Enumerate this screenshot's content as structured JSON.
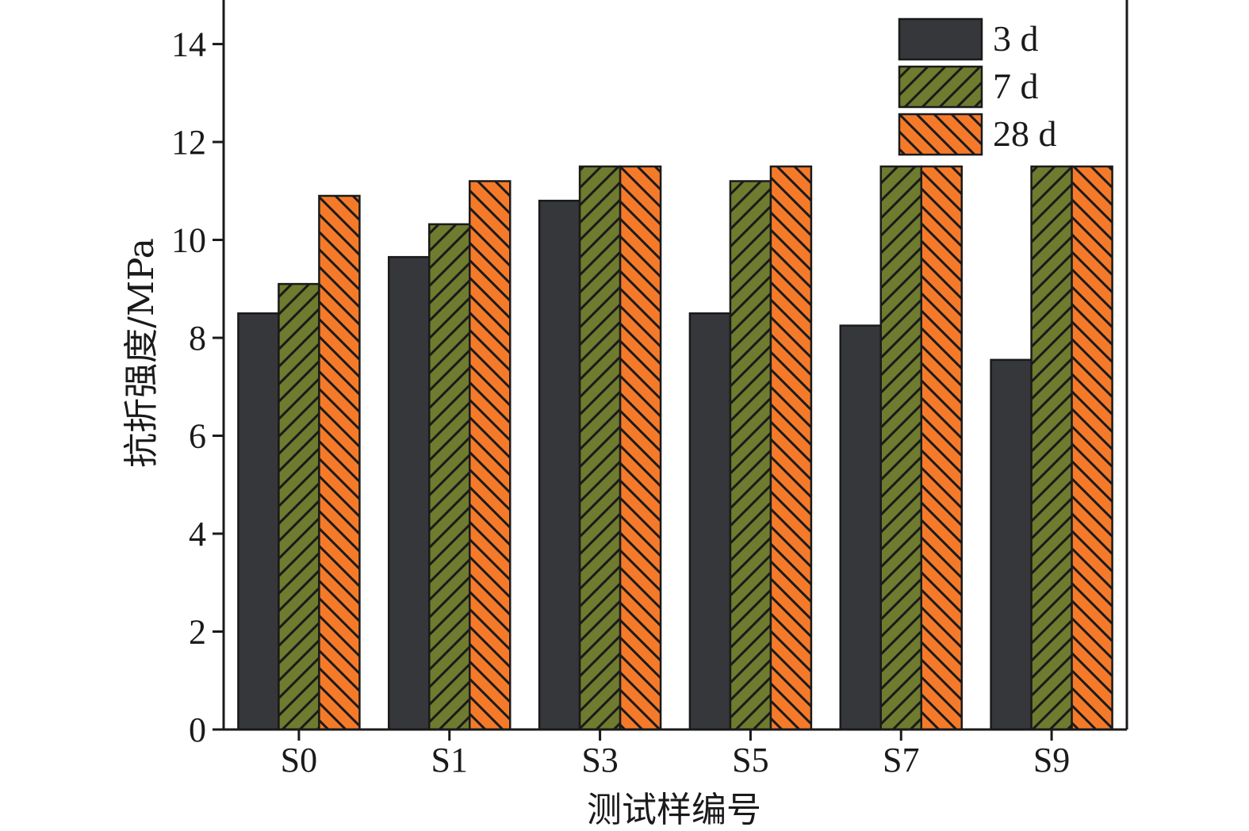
{
  "chart_data": {
    "type": "bar",
    "categories": [
      "S0",
      "S1",
      "S3",
      "S5",
      "S7",
      "S9"
    ],
    "series": [
      {
        "name": "3 d",
        "values": [
          8.5,
          9.65,
          10.8,
          8.5,
          8.25,
          7.55
        ],
        "color": "#36373b",
        "pattern": "solid"
      },
      {
        "name": "7 d",
        "values": [
          9.1,
          10.32,
          11.5,
          11.2,
          11.5,
          11.5
        ],
        "color": "#6f7b2e",
        "pattern": "forward-hatch"
      },
      {
        "name": "28 d",
        "values": [
          10.9,
          11.2,
          11.5,
          11.5,
          11.5,
          11.5
        ],
        "color": "#f47a2a",
        "pattern": "back-hatch"
      }
    ],
    "xlabel": "测试样编号",
    "ylabel": "抗折强度/MPa",
    "ylim": [
      0,
      14.9
    ],
    "yticks": [
      0,
      2,
      4,
      6,
      8,
      10,
      12,
      14
    ],
    "legend": "top-right",
    "grid": false
  }
}
